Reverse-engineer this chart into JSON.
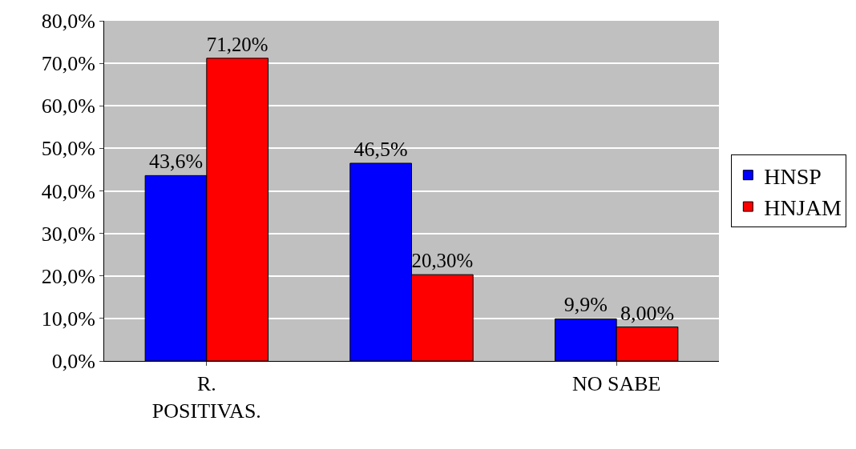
{
  "chart_data": {
    "type": "bar",
    "categories": [
      "R. POSITIVAS.",
      null,
      "NO SABE"
    ],
    "series": [
      {
        "name": "HNSP",
        "color": "#0000ff",
        "values": [
          43.6,
          46.5,
          9.9
        ],
        "value_labels": [
          "43,6%",
          "46,5%",
          "9,9%"
        ]
      },
      {
        "name": "HNJAM",
        "color": "#ff0000",
        "values": [
          71.2,
          20.3,
          8.0
        ],
        "value_labels": [
          "71,20%",
          "20,30%",
          "8,00%"
        ]
      }
    ],
    "ylim": [
      0,
      80
    ],
    "yticks": [
      {
        "value": 0,
        "label": "0,0%"
      },
      {
        "value": 10,
        "label": "10,0%"
      },
      {
        "value": 20,
        "label": "20,0%"
      },
      {
        "value": 30,
        "label": "30,0%"
      },
      {
        "value": 40,
        "label": "40,0%"
      },
      {
        "value": 50,
        "label": "50,0%"
      },
      {
        "value": 60,
        "label": "60,0%"
      },
      {
        "value": 70,
        "label": "70,0%"
      },
      {
        "value": 80,
        "label": "80,0%"
      }
    ],
    "grid": "y",
    "legend": "right"
  }
}
